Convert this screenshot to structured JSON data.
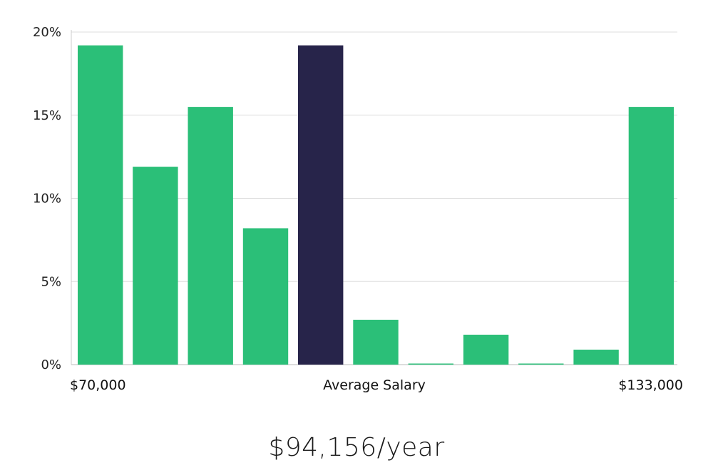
{
  "chart_data": {
    "type": "bar",
    "title": "",
    "ylabel": "",
    "xlabel": "Average Salary",
    "ylim": [
      0,
      20
    ],
    "y_ticks": [
      "0%",
      "5%",
      "10%",
      "15%",
      "20%"
    ],
    "x_labels": {
      "left": "$70,000",
      "center": "Average Salary",
      "right": "$133,000"
    },
    "values": [
      19.2,
      11.9,
      15.5,
      8.2,
      19.2,
      2.7,
      0.05,
      1.8,
      0.05,
      0.9,
      15.5
    ],
    "highlight_index": 4,
    "colors": {
      "bar": "#2bbf78",
      "highlight": "#27244a",
      "grid": "#dddddd"
    }
  },
  "summary": {
    "salary_text": "$94,156/year"
  }
}
